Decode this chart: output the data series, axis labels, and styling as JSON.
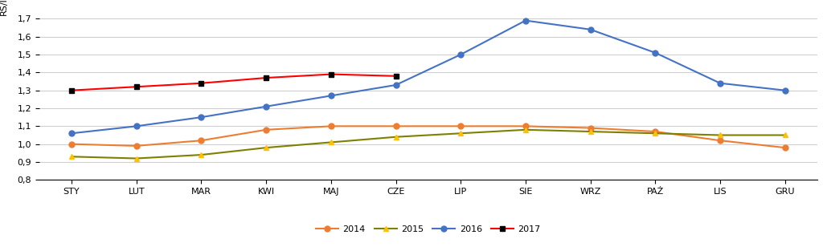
{
  "months": [
    "STY",
    "LUT",
    "MAR",
    "KWI",
    "MAJ",
    "CZE",
    "LIP",
    "SIE",
    "WRZ",
    "PAŹ",
    "LIS",
    "GRU"
  ],
  "series": {
    "2014": [
      1.0,
      0.99,
      1.02,
      1.08,
      1.1,
      1.1,
      1.1,
      1.1,
      1.09,
      1.07,
      1.02,
      0.98
    ],
    "2015": [
      0.93,
      0.92,
      0.94,
      0.98,
      1.01,
      1.04,
      1.06,
      1.08,
      1.07,
      1.06,
      1.05,
      1.05
    ],
    "2016": [
      1.06,
      1.1,
      1.15,
      1.21,
      1.27,
      1.33,
      1.5,
      1.69,
      1.64,
      1.51,
      1.34,
      1.3
    ],
    "2017": [
      1.3,
      1.32,
      1.34,
      1.37,
      1.39,
      1.38,
      null,
      null,
      null,
      null,
      null,
      null
    ]
  },
  "colors": {
    "2014": "#ED7D31",
    "2015": "#FFC000",
    "2016": "#4472C4",
    "2017": "#FF0000"
  },
  "markers": {
    "2014": "o",
    "2015": "^",
    "2016": "o",
    "2017": "s"
  },
  "marker_colors": {
    "2014": "#ED7D31",
    "2015": "#FFC000",
    "2016": "#4472C4",
    "2017": "#000000"
  },
  "line_colors": {
    "2014": "#ED7D31",
    "2015": "#808000",
    "2016": "#4472C4",
    "2017": "#FF0000"
  },
  "ylabel": "RS/l",
  "ylim": [
    0.8,
    1.75
  ],
  "yticks": [
    0.8,
    0.9,
    1.0,
    1.1,
    1.2,
    1.3,
    1.4,
    1.5,
    1.6,
    1.7
  ],
  "legend_labels": [
    "2014",
    "2015",
    "2016",
    "2017"
  ],
  "bg_color": "#FFFFFF",
  "grid_color": "#CCCCCC",
  "marker_size": 5,
  "linewidth": 1.5
}
